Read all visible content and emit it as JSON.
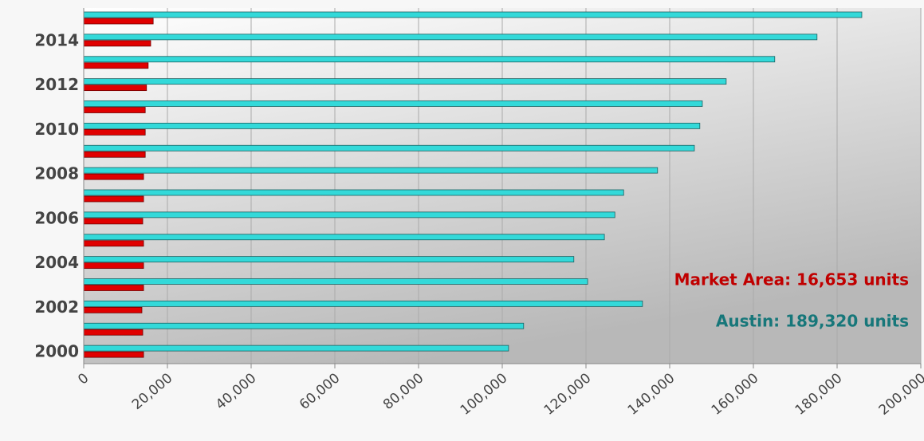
{
  "chart_data": {
    "type": "hbar",
    "categories": [
      "2000",
      null,
      "2002",
      null,
      "2004",
      null,
      "2006",
      null,
      "2008",
      null,
      "2010",
      null,
      "2012",
      null,
      "2014",
      null
    ],
    "series": [
      {
        "color": "#33d9d9",
        "values": [
          101500,
          105100,
          133500,
          120400,
          117100,
          124400,
          126900,
          129000,
          137100,
          145900,
          147200,
          147800,
          153500,
          165100,
          175200,
          185900
        ]
      },
      {
        "color": "#e00000",
        "values": [
          14300,
          14100,
          13900,
          14300,
          14300,
          14300,
          14100,
          14300,
          14300,
          14700,
          14700,
          14700,
          15000,
          15400,
          16000,
          16600
        ]
      }
    ],
    "xlim": [
      0,
      200000
    ],
    "xticks": [
      0,
      {
        "value": 20000,
        "label": "20,000"
      },
      {
        "value": 40000,
        "label": "40,000"
      },
      {
        "value": 60000,
        "label": "60,000"
      },
      {
        "value": 80000,
        "label": "80,000"
      },
      {
        "value": 100000,
        "label": "100,000"
      },
      {
        "value": 120000,
        "label": "120,000"
      },
      {
        "value": 140000,
        "label": "140,000"
      },
      {
        "value": 160000,
        "label": "160,000"
      },
      {
        "value": 180000,
        "label": "180,000"
      },
      {
        "value": 200000,
        "label": "200,000"
      }
    ],
    "grid": true,
    "annotations": [
      {
        "text": "Market Area: 16,653 units",
        "color": "#c00000"
      },
      {
        "text": "Austin: 189,320 units",
        "color": "#17777a"
      }
    ]
  }
}
